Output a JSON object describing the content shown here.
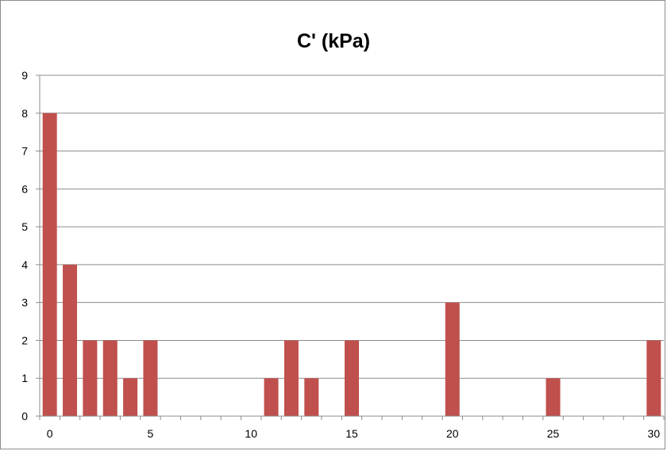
{
  "chart_data": {
    "type": "bar",
    "title": "C' (kPa)",
    "xlabel": "",
    "ylabel": "",
    "x": [
      0,
      1,
      2,
      3,
      4,
      5,
      11,
      12,
      13,
      15,
      20,
      25,
      30
    ],
    "values": [
      8,
      4,
      2,
      2,
      1,
      2,
      1,
      2,
      1,
      2,
      3,
      1,
      2
    ],
    "xlim": [
      0,
      30
    ],
    "ylim": [
      0,
      9
    ],
    "x_ticks": [
      0,
      5,
      10,
      15,
      20,
      25,
      30
    ],
    "y_ticks": [
      0,
      1,
      2,
      3,
      4,
      5,
      6,
      7,
      8,
      9
    ],
    "grid": true,
    "legend": "none",
    "bar_color": "#c0504d",
    "grid_color": "#8c8c8c"
  }
}
